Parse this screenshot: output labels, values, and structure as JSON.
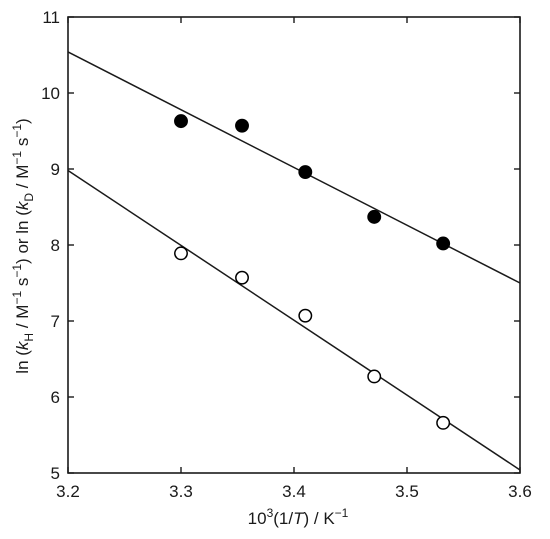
{
  "chart_data": {
    "type": "scatter",
    "xlim": [
      3.2,
      3.6
    ],
    "ylim": [
      5,
      11
    ],
    "grid": false,
    "x_ticks": [
      3.2,
      3.3,
      3.4,
      3.5,
      3.6
    ],
    "y_ticks": [
      5,
      6,
      7,
      8,
      9,
      10,
      11
    ],
    "x_tick_labels": [
      "3.2",
      "3.3",
      "3.4",
      "3.5",
      "3.6"
    ],
    "y_tick_labels": [
      "5",
      "6",
      "7",
      "8",
      "9",
      "10",
      "11"
    ],
    "xlabel": {
      "prefix": "10",
      "exp": "3",
      "open": "(1/",
      "var": "T",
      "close": ") / K",
      "unit_exp": "−1"
    },
    "ylabel": {
      "p1": "ln (",
      "k1": "k",
      "s1": "H",
      "p2": " / M",
      "e1": "−1",
      "p3": " s",
      "e2": "−1",
      "p4": ") or ln (",
      "k2": "k",
      "s2": "D",
      "p5": " / M",
      "e3": "−1",
      "p6": " s",
      "e4": "−1",
      "p7": ")"
    },
    "series": [
      {
        "marker": "filled-circle",
        "color": "#000000",
        "points": [
          [
            3.3,
            9.63
          ],
          [
            3.354,
            9.57
          ],
          [
            3.41,
            8.96
          ],
          [
            3.471,
            8.37
          ],
          [
            3.532,
            8.02
          ]
        ],
        "fit_line": {
          "x": [
            3.2,
            3.6
          ],
          "y": [
            10.54,
            7.5
          ]
        }
      },
      {
        "marker": "open-circle",
        "color": "#000000",
        "points": [
          [
            3.3,
            7.89
          ],
          [
            3.354,
            7.57
          ],
          [
            3.41,
            7.07
          ],
          [
            3.471,
            6.27
          ],
          [
            3.532,
            5.66
          ]
        ],
        "fit_line": {
          "x": [
            3.2,
            3.6
          ],
          "y": [
            8.98,
            5.04
          ]
        }
      }
    ]
  }
}
